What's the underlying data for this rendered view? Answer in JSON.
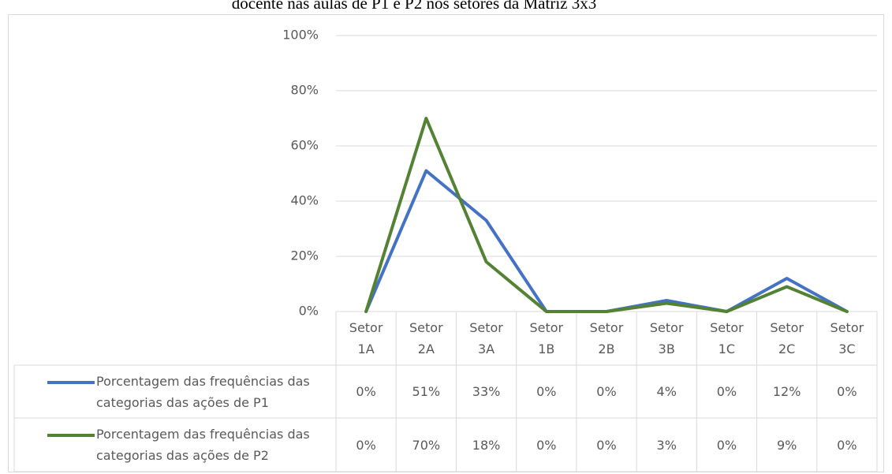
{
  "chart_data": {
    "type": "line",
    "title": "docente nas aulas de P1 e P2 nos setores da Matriz 3x3",
    "categories": [
      "Setor 1A",
      "Setor 2A",
      "Setor 3A",
      "Setor 1B",
      "Setor 2B",
      "Setor 3B",
      "Setor 1C",
      "Setor 2C",
      "Setor 3C"
    ],
    "series": [
      {
        "name": "Porcentagem das frequências das categorias das ações de P1",
        "color": "#4472c4",
        "values": [
          0,
          51,
          33,
          0,
          0,
          4,
          0,
          12,
          0
        ],
        "value_labels": [
          "0%",
          "51%",
          "33%",
          "0%",
          "0%",
          "4%",
          "0%",
          "12%",
          "0%"
        ]
      },
      {
        "name": "Porcentagem das frequências das categorias das ações de P2",
        "color": "#548235",
        "values": [
          0,
          70,
          18,
          0,
          0,
          3,
          0,
          9,
          0
        ],
        "value_labels": [
          "0%",
          "70%",
          "18%",
          "0%",
          "0%",
          "3%",
          "0%",
          "9%",
          "0%"
        ]
      }
    ],
    "ylim": [
      0,
      100
    ],
    "yticks": [
      {
        "value": 0,
        "label": "0%"
      },
      {
        "value": 20,
        "label": "20%"
      },
      {
        "value": 40,
        "label": "40%"
      },
      {
        "value": 60,
        "label": "60%"
      },
      {
        "value": 80,
        "label": "80%"
      },
      {
        "value": 100,
        "label": "100%"
      }
    ],
    "grid": true,
    "data_table": true
  }
}
